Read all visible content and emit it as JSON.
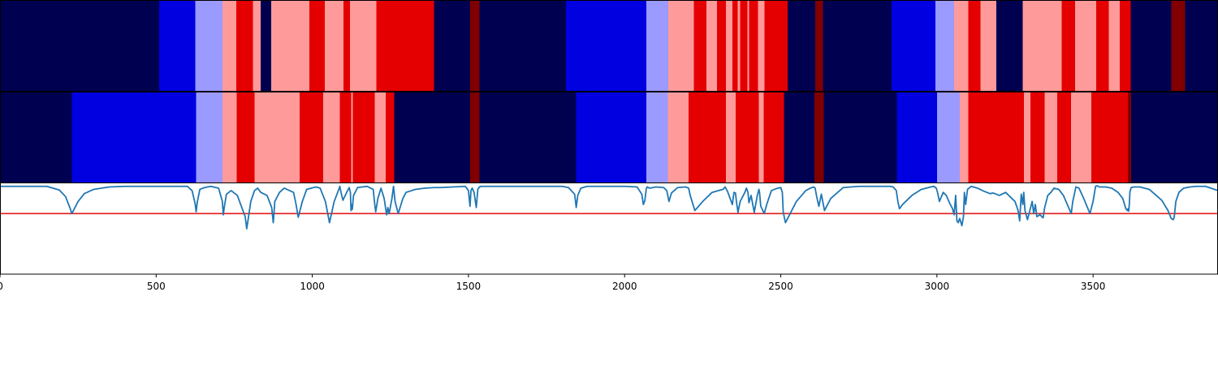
{
  "chart_data": {
    "type": "heatmap",
    "title": "",
    "xlabel": "",
    "ylabel": "",
    "xlim": [
      0,
      3900
    ],
    "x_ticks": [
      0,
      500,
      1000,
      1500,
      2000,
      2500,
      3000,
      3500
    ],
    "x_tick_labels": [
      "0",
      "500",
      "1000",
      "1500",
      "2000",
      "2500",
      "3000",
      "3500"
    ],
    "colors": {
      "0": "#000050",
      "1": "#0000e0",
      "2": "#9a9aff",
      "3": "#ff9a9a",
      "4": "#e40000",
      "5": "#800000"
    },
    "tracks": [
      {
        "segments": [
          [
            0,
            510,
            0
          ],
          [
            510,
            625,
            1
          ],
          [
            625,
            712,
            2
          ],
          [
            712,
            756,
            3
          ],
          [
            756,
            810,
            4
          ],
          [
            810,
            835,
            3
          ],
          [
            835,
            868,
            0
          ],
          [
            868,
            990,
            3
          ],
          [
            990,
            1040,
            4
          ],
          [
            1040,
            1100,
            3
          ],
          [
            1100,
            1120,
            4
          ],
          [
            1120,
            1205,
            3
          ],
          [
            1205,
            1390,
            4
          ],
          [
            1390,
            1505,
            0
          ],
          [
            1505,
            1535,
            5
          ],
          [
            1535,
            1812,
            0
          ],
          [
            1812,
            2070,
            1
          ],
          [
            2070,
            2140,
            2
          ],
          [
            2140,
            2222,
            3
          ],
          [
            2222,
            2262,
            4
          ],
          [
            2262,
            2296,
            3
          ],
          [
            2296,
            2325,
            4
          ],
          [
            2325,
            2345,
            3
          ],
          [
            2345,
            2362,
            4
          ],
          [
            2362,
            2370,
            3
          ],
          [
            2370,
            2393,
            4
          ],
          [
            2393,
            2398,
            3
          ],
          [
            2398,
            2427,
            4
          ],
          [
            2427,
            2448,
            3
          ],
          [
            2448,
            2522,
            4
          ],
          [
            2522,
            2610,
            0
          ],
          [
            2610,
            2635,
            5
          ],
          [
            2635,
            2855,
            0
          ],
          [
            2855,
            2995,
            1
          ],
          [
            2995,
            3055,
            2
          ],
          [
            3055,
            3100,
            3
          ],
          [
            3100,
            3140,
            4
          ],
          [
            3140,
            3190,
            3
          ],
          [
            3190,
            3275,
            0
          ],
          [
            3275,
            3400,
            3
          ],
          [
            3400,
            3443,
            4
          ],
          [
            3443,
            3510,
            3
          ],
          [
            3510,
            3550,
            4
          ],
          [
            3550,
            3585,
            3
          ],
          [
            3585,
            3620,
            4
          ],
          [
            3620,
            3750,
            0
          ],
          [
            3750,
            3795,
            5
          ],
          [
            3795,
            3900,
            0
          ]
        ]
      },
      {
        "segments": [
          [
            0,
            230,
            0
          ],
          [
            230,
            628,
            1
          ],
          [
            628,
            712,
            2
          ],
          [
            712,
            758,
            3
          ],
          [
            758,
            815,
            4
          ],
          [
            815,
            960,
            3
          ],
          [
            960,
            1035,
            4
          ],
          [
            1035,
            1088,
            3
          ],
          [
            1088,
            1125,
            4
          ],
          [
            1125,
            1130,
            3
          ],
          [
            1130,
            1200,
            4
          ],
          [
            1200,
            1235,
            3
          ],
          [
            1235,
            1262,
            4
          ],
          [
            1262,
            1505,
            0
          ],
          [
            1505,
            1535,
            5
          ],
          [
            1535,
            1845,
            0
          ],
          [
            1845,
            2070,
            1
          ],
          [
            2070,
            2138,
            2
          ],
          [
            2138,
            2205,
            3
          ],
          [
            2205,
            2325,
            4
          ],
          [
            2325,
            2355,
            3
          ],
          [
            2355,
            2430,
            4
          ],
          [
            2430,
            2445,
            3
          ],
          [
            2445,
            2510,
            4
          ],
          [
            2510,
            2608,
            0
          ],
          [
            2608,
            2638,
            5
          ],
          [
            2638,
            2872,
            0
          ],
          [
            2872,
            3000,
            1
          ],
          [
            3000,
            3073,
            2
          ],
          [
            3073,
            3100,
            3
          ],
          [
            3100,
            3278,
            4
          ],
          [
            3278,
            3300,
            3
          ],
          [
            3300,
            3345,
            4
          ],
          [
            3345,
            3385,
            3
          ],
          [
            3385,
            3430,
            4
          ],
          [
            3430,
            3495,
            3
          ],
          [
            3495,
            3612,
            4
          ],
          [
            3612,
            3622,
            5
          ],
          [
            3622,
            3900,
            0
          ]
        ]
      }
    ],
    "curve": {
      "color": "#1f77b4",
      "threshold": 1.0,
      "threshold_color": "#e41a1c",
      "ylim": [
        0,
        1.5
      ],
      "x": [
        0,
        150,
        190,
        210,
        225,
        230,
        235,
        250,
        270,
        300,
        350,
        400,
        450,
        500,
        550,
        600,
        615,
        625,
        628,
        632,
        640,
        655,
        675,
        700,
        712,
        715,
        718,
        725,
        740,
        760,
        770,
        785,
        790,
        795,
        803,
        815,
        825,
        835,
        855,
        870,
        875,
        880,
        895,
        910,
        940,
        948,
        955,
        968,
        982,
        1012,
        1025,
        1042,
        1055,
        1070,
        1085,
        1088,
        1092,
        1098,
        1110,
        1118,
        1122,
        1124,
        1126,
        1128,
        1132,
        1145,
        1175,
        1195,
        1200,
        1203,
        1210,
        1220,
        1230,
        1238,
        1242,
        1246,
        1255,
        1260,
        1265,
        1275,
        1290,
        1300,
        1330,
        1360,
        1390,
        1410,
        1450,
        1490,
        1500,
        1505,
        1508,
        1512,
        1518,
        1525,
        1530,
        1535,
        1540,
        1545,
        1600,
        1650,
        1700,
        1750,
        1800,
        1820,
        1840,
        1845,
        1850,
        1860,
        1880,
        1950,
        2000,
        2040,
        2055,
        2060,
        2065,
        2069,
        2072,
        2080,
        2100,
        2125,
        2135,
        2142,
        2150,
        2170,
        2195,
        2205,
        2210,
        2225,
        2250,
        2280,
        2300,
        2315,
        2322,
        2330,
        2345,
        2350,
        2355,
        2358,
        2363,
        2370,
        2385,
        2390,
        2395,
        2398,
        2405,
        2415,
        2425,
        2430,
        2432,
        2436,
        2440,
        2447,
        2455,
        2470,
        2490,
        2500,
        2505,
        2508,
        2515,
        2525,
        2550,
        2580,
        2595,
        2605,
        2610,
        2615,
        2622,
        2630,
        2640,
        2660,
        2700,
        2750,
        2800,
        2830,
        2850,
        2860,
        2870,
        2875,
        2880,
        2890,
        2920,
        2950,
        2980,
        2990,
        2998,
        3002,
        3008,
        3020,
        3030,
        3040,
        3050,
        3055,
        3060,
        3064,
        3068,
        3073,
        3080,
        3085,
        3088,
        3092,
        3098,
        3110,
        3130,
        3150,
        3170,
        3180,
        3200,
        3220,
        3230,
        3240,
        3250,
        3260,
        3265,
        3270,
        3275,
        3278,
        3282,
        3290,
        3300,
        3305,
        3310,
        3315,
        3320,
        3330,
        3340,
        3345,
        3355,
        3365,
        3375,
        3390,
        3405,
        3430,
        3435,
        3440,
        3445,
        3455,
        3470,
        3490,
        3500,
        3508,
        3513,
        3520,
        3540,
        3560,
        3580,
        3595,
        3605,
        3610,
        3612,
        3614,
        3616,
        3618,
        3622,
        3630,
        3650,
        3680,
        3720,
        3740,
        3750,
        3757,
        3760,
        3765,
        3775,
        3790,
        3810,
        3830,
        3860,
        3900
      ],
      "y": [
        1.45,
        1.45,
        1.39,
        1.28,
        1.08,
        1.0,
        1.05,
        1.2,
        1.33,
        1.4,
        1.44,
        1.45,
        1.45,
        1.45,
        1.45,
        1.45,
        1.38,
        1.16,
        1.03,
        1.2,
        1.4,
        1.43,
        1.45,
        1.42,
        1.2,
        0.98,
        1.1,
        1.32,
        1.38,
        1.3,
        1.16,
        0.95,
        0.75,
        0.92,
        1.2,
        1.38,
        1.42,
        1.35,
        1.3,
        1.1,
        0.85,
        1.2,
        1.35,
        1.42,
        1.35,
        1.15,
        0.94,
        1.2,
        1.4,
        1.44,
        1.42,
        1.2,
        0.85,
        1.2,
        1.4,
        1.45,
        1.35,
        1.22,
        1.35,
        1.43,
        1.35,
        1.05,
        1.15,
        1.07,
        1.3,
        1.43,
        1.45,
        1.4,
        1.15,
        1.03,
        1.25,
        1.42,
        1.25,
        0.98,
        1.1,
        1.0,
        1.25,
        1.45,
        1.2,
        1.0,
        1.25,
        1.35,
        1.4,
        1.42,
        1.43,
        1.43,
        1.44,
        1.45,
        1.38,
        1.12,
        1.38,
        1.42,
        1.35,
        1.1,
        1.4,
        1.44,
        1.45,
        1.45,
        1.45,
        1.45,
        1.45,
        1.45,
        1.45,
        1.43,
        1.32,
        1.1,
        1.3,
        1.42,
        1.45,
        1.45,
        1.45,
        1.44,
        1.32,
        1.15,
        1.22,
        1.4,
        1.44,
        1.42,
        1.44,
        1.43,
        1.38,
        1.2,
        1.34,
        1.43,
        1.44,
        1.42,
        1.3,
        1.05,
        1.2,
        1.35,
        1.38,
        1.4,
        1.44,
        1.36,
        1.15,
        1.35,
        1.34,
        1.2,
        1.02,
        1.2,
        1.35,
        1.42,
        1.35,
        1.18,
        1.3,
        1.02,
        1.3,
        1.4,
        1.35,
        1.12,
        1.08,
        1.0,
        1.15,
        1.38,
        1.42,
        1.43,
        1.35,
        1.02,
        0.85,
        0.95,
        1.2,
        1.38,
        1.42,
        1.44,
        1.42,
        1.28,
        1.12,
        1.32,
        1.05,
        1.25,
        1.43,
        1.45,
        1.45,
        1.45,
        1.45,
        1.44,
        1.38,
        1.2,
        1.08,
        1.15,
        1.3,
        1.4,
        1.44,
        1.45,
        1.42,
        1.35,
        1.2,
        1.35,
        1.3,
        1.18,
        1.08,
        0.98,
        1.3,
        0.88,
        0.85,
        0.92,
        0.8,
        0.95,
        1.35,
        1.15,
        1.4,
        1.45,
        1.42,
        1.37,
        1.33,
        1.34,
        1.3,
        1.35,
        1.3,
        1.25,
        1.2,
        1.05,
        0.88,
        1.32,
        1.15,
        1.35,
        1.05,
        0.9,
        1.1,
        1.2,
        1.0,
        1.15,
        0.95,
        0.98,
        0.93,
        1.1,
        1.3,
        1.35,
        1.42,
        1.4,
        1.3,
        1.0,
        1.2,
        1.32,
        1.44,
        1.42,
        1.25,
        1.0,
        1.2,
        1.45,
        1.46,
        1.44,
        1.44,
        1.42,
        1.35,
        1.25,
        1.08,
        1.05,
        1.08,
        1.04,
        1.15,
        1.36,
        1.43,
        1.44,
        1.44,
        1.4,
        1.22,
        1.05,
        0.92,
        0.9,
        0.95,
        1.2,
        1.35,
        1.42,
        1.44,
        1.45,
        1.45,
        1.38
      ]
    }
  }
}
